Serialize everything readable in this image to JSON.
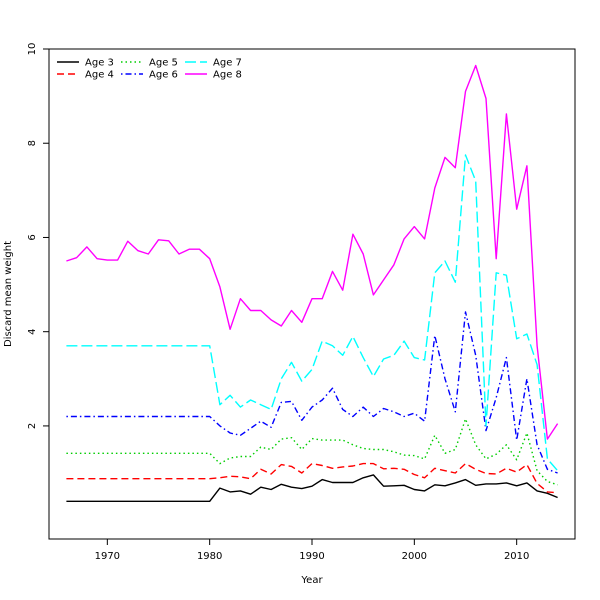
{
  "chart_data": {
    "type": "line",
    "title": "",
    "xlabel": "Year",
    "ylabel": "Discard mean weight",
    "xlim": [
      1964.3,
      2015.7
    ],
    "ylim": [
      -0.4,
      10.0
    ],
    "x_ticks": [
      1970,
      1980,
      1990,
      2000,
      2010
    ],
    "y_ticks": [
      2,
      4,
      6,
      8,
      10
    ],
    "grid": false,
    "legend_position": "top-left",
    "x": [
      1966,
      1967,
      1968,
      1969,
      1970,
      1971,
      1972,
      1973,
      1974,
      1975,
      1976,
      1977,
      1978,
      1979,
      1980,
      1981,
      1982,
      1983,
      1984,
      1985,
      1986,
      1987,
      1988,
      1989,
      1990,
      1991,
      1992,
      1993,
      1994,
      1995,
      1996,
      1997,
      1998,
      1999,
      2000,
      2001,
      2002,
      2003,
      2004,
      2005,
      2006,
      2007,
      2008,
      2009,
      2010,
      2011,
      2012,
      2013,
      2014
    ],
    "series": [
      {
        "name": "Age 3",
        "color": "#000000",
        "dash": "solid",
        "values": [
          0.4,
          0.4,
          0.4,
          0.4,
          0.4,
          0.4,
          0.4,
          0.4,
          0.4,
          0.4,
          0.4,
          0.4,
          0.4,
          0.4,
          0.4,
          0.68,
          0.6,
          0.62,
          0.55,
          0.7,
          0.65,
          0.76,
          0.7,
          0.67,
          0.72,
          0.86,
          0.8,
          0.8,
          0.8,
          0.9,
          0.96,
          0.72,
          0.73,
          0.74,
          0.65,
          0.62,
          0.75,
          0.73,
          0.79,
          0.86,
          0.74,
          0.77,
          0.77,
          0.79,
          0.73,
          0.79,
          0.62,
          0.57,
          0.48
        ]
      },
      {
        "name": "Age 4",
        "color": "#ff0000",
        "dash": "dashed",
        "values": [
          0.88,
          0.88,
          0.88,
          0.88,
          0.88,
          0.88,
          0.88,
          0.88,
          0.88,
          0.88,
          0.88,
          0.88,
          0.88,
          0.88,
          0.88,
          0.9,
          0.93,
          0.92,
          0.88,
          1.08,
          0.98,
          1.18,
          1.14,
          1.0,
          1.2,
          1.16,
          1.1,
          1.13,
          1.15,
          1.2,
          1.2,
          1.09,
          1.1,
          1.08,
          0.97,
          0.9,
          1.1,
          1.05,
          1.0,
          1.2,
          1.08,
          0.99,
          0.98,
          1.1,
          1.02,
          1.18,
          0.78,
          0.6,
          0.58
        ]
      },
      {
        "name": "Age 5",
        "color": "#00cd00",
        "dash": "dotted",
        "values": [
          1.42,
          1.42,
          1.42,
          1.42,
          1.42,
          1.42,
          1.42,
          1.42,
          1.42,
          1.42,
          1.42,
          1.42,
          1.42,
          1.42,
          1.42,
          1.2,
          1.32,
          1.35,
          1.35,
          1.55,
          1.5,
          1.72,
          1.75,
          1.5,
          1.73,
          1.7,
          1.7,
          1.7,
          1.6,
          1.52,
          1.5,
          1.5,
          1.45,
          1.38,
          1.37,
          1.3,
          1.8,
          1.42,
          1.5,
          2.15,
          1.6,
          1.3,
          1.4,
          1.6,
          1.28,
          1.85,
          1.05,
          0.82,
          0.75
        ]
      },
      {
        "name": "Age 6",
        "color": "#0000ff",
        "dash": "dotdash",
        "values": [
          2.2,
          2.2,
          2.2,
          2.2,
          2.2,
          2.2,
          2.2,
          2.2,
          2.2,
          2.2,
          2.2,
          2.2,
          2.2,
          2.2,
          2.2,
          2.0,
          1.85,
          1.8,
          1.95,
          2.1,
          1.97,
          2.5,
          2.52,
          2.12,
          2.4,
          2.55,
          2.8,
          2.35,
          2.2,
          2.4,
          2.2,
          2.37,
          2.3,
          2.2,
          2.27,
          2.1,
          3.92,
          3.0,
          2.3,
          4.42,
          3.5,
          1.9,
          2.6,
          3.45,
          1.7,
          3.0,
          1.6,
          1.08,
          1.0
        ]
      },
      {
        "name": "Age 7",
        "color": "#00ffff",
        "dash": "longdash",
        "values": [
          3.7,
          3.7,
          3.7,
          3.7,
          3.7,
          3.7,
          3.7,
          3.7,
          3.7,
          3.7,
          3.7,
          3.7,
          3.7,
          3.7,
          3.7,
          2.45,
          2.65,
          2.4,
          2.55,
          2.45,
          2.35,
          3.0,
          3.35,
          2.95,
          3.2,
          3.8,
          3.7,
          3.5,
          3.9,
          3.45,
          3.05,
          3.42,
          3.5,
          3.8,
          3.45,
          3.4,
          5.25,
          5.5,
          5.05,
          7.75,
          7.2,
          2.0,
          5.25,
          5.2,
          3.85,
          3.95,
          3.3,
          1.3,
          1.05
        ]
      },
      {
        "name": "Age 8",
        "color": "#ff00ff",
        "dash": "solid",
        "values": [
          5.5,
          5.57,
          5.8,
          5.55,
          5.52,
          5.52,
          5.92,
          5.72,
          5.65,
          5.95,
          5.93,
          5.65,
          5.75,
          5.75,
          5.55,
          4.95,
          4.05,
          4.7,
          4.45,
          4.45,
          4.25,
          4.12,
          4.45,
          4.2,
          4.7,
          4.7,
          5.28,
          4.88,
          6.07,
          5.65,
          4.78,
          5.1,
          5.42,
          5.97,
          6.23,
          5.97,
          7.05,
          7.7,
          7.48,
          9.1,
          9.65,
          8.95,
          5.55,
          8.62,
          6.6,
          7.52,
          3.7,
          1.72,
          2.05
        ]
      }
    ]
  }
}
